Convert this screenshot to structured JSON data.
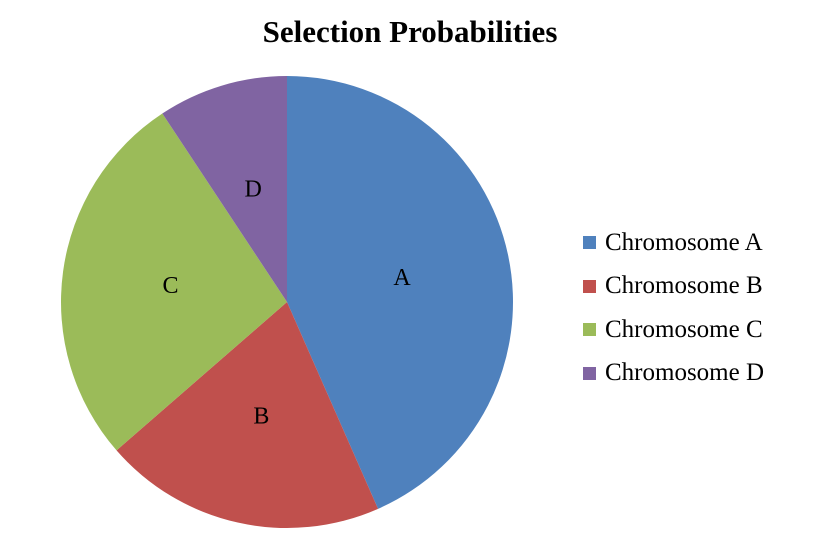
{
  "chart_data": {
    "type": "pie",
    "title": "Selection Probabilities",
    "legend_position": "right",
    "slices": [
      {
        "label": "A",
        "name": "Chromosome A",
        "value": 43.4,
        "color": "#4F81BD"
      },
      {
        "label": "B",
        "name": "Chromosome B",
        "value": 20.2,
        "color": "#C0504D"
      },
      {
        "label": "C",
        "name": "Chromosome C",
        "value": 27.1,
        "color": "#9BBB59"
      },
      {
        "label": "D",
        "name": "Chromosome D",
        "value": 9.3,
        "color": "#8064A2"
      }
    ]
  }
}
